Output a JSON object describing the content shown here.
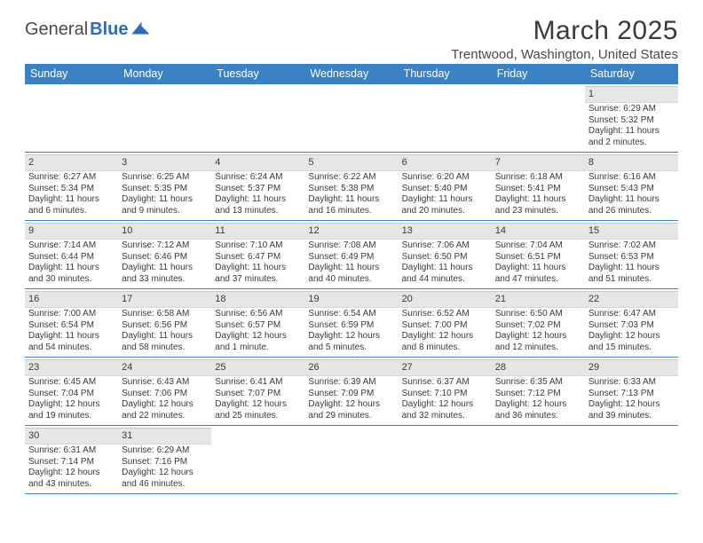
{
  "brand": {
    "name1": "General",
    "name2": "Blue"
  },
  "title": {
    "month": "March 2025",
    "location": "Trentwood, Washington, United States"
  },
  "colors": {
    "header_bg": "#3b82c4",
    "header_text": "#ffffff",
    "daynum_bg": "#e6e6e6",
    "row_divider": "#3b82c4",
    "text": "#3a3a3a",
    "page_bg": "#ffffff",
    "brand_accent": "#2a6db8"
  },
  "typography": {
    "title_fontsize": 30,
    "location_fontsize": 15,
    "dayhead_fontsize": 12.5,
    "cell_fontsize": 10
  },
  "calendar": {
    "type": "table",
    "day_headers": [
      "Sunday",
      "Monday",
      "Tuesday",
      "Wednesday",
      "Thursday",
      "Friday",
      "Saturday"
    ],
    "weeks": [
      [
        null,
        null,
        null,
        null,
        null,
        null,
        {
          "n": "1",
          "sunrise": "Sunrise: 6:29 AM",
          "sunset": "Sunset: 5:32 PM",
          "daylight": "Daylight: 11 hours and 2 minutes."
        }
      ],
      [
        {
          "n": "2",
          "sunrise": "Sunrise: 6:27 AM",
          "sunset": "Sunset: 5:34 PM",
          "daylight": "Daylight: 11 hours and 6 minutes."
        },
        {
          "n": "3",
          "sunrise": "Sunrise: 6:25 AM",
          "sunset": "Sunset: 5:35 PM",
          "daylight": "Daylight: 11 hours and 9 minutes."
        },
        {
          "n": "4",
          "sunrise": "Sunrise: 6:24 AM",
          "sunset": "Sunset: 5:37 PM",
          "daylight": "Daylight: 11 hours and 13 minutes."
        },
        {
          "n": "5",
          "sunrise": "Sunrise: 6:22 AM",
          "sunset": "Sunset: 5:38 PM",
          "daylight": "Daylight: 11 hours and 16 minutes."
        },
        {
          "n": "6",
          "sunrise": "Sunrise: 6:20 AM",
          "sunset": "Sunset: 5:40 PM",
          "daylight": "Daylight: 11 hours and 20 minutes."
        },
        {
          "n": "7",
          "sunrise": "Sunrise: 6:18 AM",
          "sunset": "Sunset: 5:41 PM",
          "daylight": "Daylight: 11 hours and 23 minutes."
        },
        {
          "n": "8",
          "sunrise": "Sunrise: 6:16 AM",
          "sunset": "Sunset: 5:43 PM",
          "daylight": "Daylight: 11 hours and 26 minutes."
        }
      ],
      [
        {
          "n": "9",
          "sunrise": "Sunrise: 7:14 AM",
          "sunset": "Sunset: 6:44 PM",
          "daylight": "Daylight: 11 hours and 30 minutes."
        },
        {
          "n": "10",
          "sunrise": "Sunrise: 7:12 AM",
          "sunset": "Sunset: 6:46 PM",
          "daylight": "Daylight: 11 hours and 33 minutes."
        },
        {
          "n": "11",
          "sunrise": "Sunrise: 7:10 AM",
          "sunset": "Sunset: 6:47 PM",
          "daylight": "Daylight: 11 hours and 37 minutes."
        },
        {
          "n": "12",
          "sunrise": "Sunrise: 7:08 AM",
          "sunset": "Sunset: 6:49 PM",
          "daylight": "Daylight: 11 hours and 40 minutes."
        },
        {
          "n": "13",
          "sunrise": "Sunrise: 7:06 AM",
          "sunset": "Sunset: 6:50 PM",
          "daylight": "Daylight: 11 hours and 44 minutes."
        },
        {
          "n": "14",
          "sunrise": "Sunrise: 7:04 AM",
          "sunset": "Sunset: 6:51 PM",
          "daylight": "Daylight: 11 hours and 47 minutes."
        },
        {
          "n": "15",
          "sunrise": "Sunrise: 7:02 AM",
          "sunset": "Sunset: 6:53 PM",
          "daylight": "Daylight: 11 hours and 51 minutes."
        }
      ],
      [
        {
          "n": "16",
          "sunrise": "Sunrise: 7:00 AM",
          "sunset": "Sunset: 6:54 PM",
          "daylight": "Daylight: 11 hours and 54 minutes."
        },
        {
          "n": "17",
          "sunrise": "Sunrise: 6:58 AM",
          "sunset": "Sunset: 6:56 PM",
          "daylight": "Daylight: 11 hours and 58 minutes."
        },
        {
          "n": "18",
          "sunrise": "Sunrise: 6:56 AM",
          "sunset": "Sunset: 6:57 PM",
          "daylight": "Daylight: 12 hours and 1 minute."
        },
        {
          "n": "19",
          "sunrise": "Sunrise: 6:54 AM",
          "sunset": "Sunset: 6:59 PM",
          "daylight": "Daylight: 12 hours and 5 minutes."
        },
        {
          "n": "20",
          "sunrise": "Sunrise: 6:52 AM",
          "sunset": "Sunset: 7:00 PM",
          "daylight": "Daylight: 12 hours and 8 minutes."
        },
        {
          "n": "21",
          "sunrise": "Sunrise: 6:50 AM",
          "sunset": "Sunset: 7:02 PM",
          "daylight": "Daylight: 12 hours and 12 minutes."
        },
        {
          "n": "22",
          "sunrise": "Sunrise: 6:47 AM",
          "sunset": "Sunset: 7:03 PM",
          "daylight": "Daylight: 12 hours and 15 minutes."
        }
      ],
      [
        {
          "n": "23",
          "sunrise": "Sunrise: 6:45 AM",
          "sunset": "Sunset: 7:04 PM",
          "daylight": "Daylight: 12 hours and 19 minutes."
        },
        {
          "n": "24",
          "sunrise": "Sunrise: 6:43 AM",
          "sunset": "Sunset: 7:06 PM",
          "daylight": "Daylight: 12 hours and 22 minutes."
        },
        {
          "n": "25",
          "sunrise": "Sunrise: 6:41 AM",
          "sunset": "Sunset: 7:07 PM",
          "daylight": "Daylight: 12 hours and 25 minutes."
        },
        {
          "n": "26",
          "sunrise": "Sunrise: 6:39 AM",
          "sunset": "Sunset: 7:09 PM",
          "daylight": "Daylight: 12 hours and 29 minutes."
        },
        {
          "n": "27",
          "sunrise": "Sunrise: 6:37 AM",
          "sunset": "Sunset: 7:10 PM",
          "daylight": "Daylight: 12 hours and 32 minutes."
        },
        {
          "n": "28",
          "sunrise": "Sunrise: 6:35 AM",
          "sunset": "Sunset: 7:12 PM",
          "daylight": "Daylight: 12 hours and 36 minutes."
        },
        {
          "n": "29",
          "sunrise": "Sunrise: 6:33 AM",
          "sunset": "Sunset: 7:13 PM",
          "daylight": "Daylight: 12 hours and 39 minutes."
        }
      ],
      [
        {
          "n": "30",
          "sunrise": "Sunrise: 6:31 AM",
          "sunset": "Sunset: 7:14 PM",
          "daylight": "Daylight: 12 hours and 43 minutes."
        },
        {
          "n": "31",
          "sunrise": "Sunrise: 6:29 AM",
          "sunset": "Sunset: 7:16 PM",
          "daylight": "Daylight: 12 hours and 46 minutes."
        },
        null,
        null,
        null,
        null,
        null
      ]
    ]
  }
}
